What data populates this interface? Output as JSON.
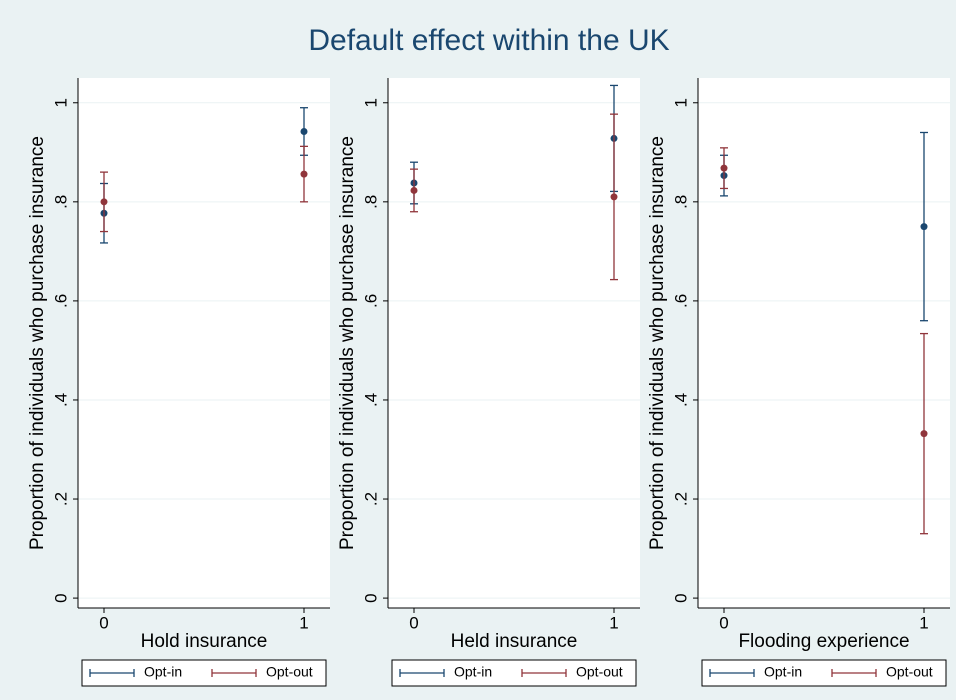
{
  "title": "Default effect within the UK",
  "chart_data": [
    {
      "type": "errorbar",
      "xlabel": "Hold insurance",
      "ylabel": "Proportion of individuals who purchase insurance",
      "x": [
        0,
        1
      ],
      "xlim": [
        -0.13,
        1.13
      ],
      "xticks": [
        0,
        1
      ],
      "ylim": [
        -0.02,
        1.05
      ],
      "yticks": [
        0,
        {
          "value": 0.2,
          "label": ".2"
        },
        {
          "value": 0.4,
          "label": ".4"
        },
        {
          "value": 0.6,
          "label": ".6"
        },
        {
          "value": 0.8,
          "label": ".8"
        },
        1
      ],
      "grid": true,
      "legend": "bottom",
      "series": [
        {
          "name": "Opt-in",
          "color": "#1a476f",
          "values": [
            0.777,
            0.942
          ],
          "errors": [
            0.06,
            0.048
          ]
        },
        {
          "name": "Opt-out",
          "color": "#90353b",
          "values": [
            0.8,
            0.856
          ],
          "errors": [
            0.06,
            0.056
          ]
        }
      ]
    },
    {
      "type": "errorbar",
      "xlabel": "Held insurance",
      "ylabel": "Proportion of individuals who purchase insurance",
      "x": [
        0,
        1
      ],
      "xlim": [
        -0.13,
        1.13
      ],
      "xticks": [
        0,
        1
      ],
      "ylim": [
        -0.02,
        1.05
      ],
      "yticks": [
        0,
        {
          "value": 0.2,
          "label": ".2"
        },
        {
          "value": 0.4,
          "label": ".4"
        },
        {
          "value": 0.6,
          "label": ".6"
        },
        {
          "value": 0.8,
          "label": ".8"
        },
        1
      ],
      "grid": true,
      "legend": "bottom",
      "series": [
        {
          "name": "Opt-in",
          "color": "#1a476f",
          "values": [
            0.838,
            0.928
          ],
          "errors": [
            0.042,
            0.107
          ]
        },
        {
          "name": "Opt-out",
          "color": "#90353b",
          "values": [
            0.823,
            0.81
          ],
          "errors": [
            0.043,
            0.167
          ]
        }
      ]
    },
    {
      "type": "errorbar",
      "xlabel": "Flooding experience",
      "ylabel": "Proportion of individuals who purchase insurance",
      "x": [
        0,
        1
      ],
      "xlim": [
        -0.13,
        1.13
      ],
      "xticks": [
        0,
        1
      ],
      "ylim": [
        -0.02,
        1.05
      ],
      "yticks": [
        0,
        {
          "value": 0.2,
          "label": ".2"
        },
        {
          "value": 0.4,
          "label": ".4"
        },
        {
          "value": 0.6,
          "label": ".6"
        },
        {
          "value": 0.8,
          "label": ".8"
        },
        1
      ],
      "grid": true,
      "legend": "bottom",
      "series": [
        {
          "name": "Opt-in",
          "color": "#1a476f",
          "values": [
            0.853,
            0.75
          ],
          "errors": [
            0.041,
            0.19
          ]
        },
        {
          "name": "Opt-out",
          "color": "#90353b",
          "values": [
            0.868,
            0.332
          ],
          "errors": [
            0.041,
            0.202
          ]
        }
      ]
    }
  ]
}
